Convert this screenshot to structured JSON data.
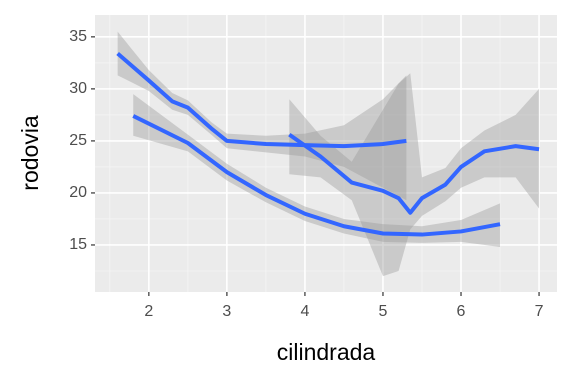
{
  "chart_data": {
    "type": "line",
    "x_label": "cilindrada",
    "y_label": "rodovia",
    "xlim": [
      1.31,
      7.23
    ],
    "ylim": [
      10.48,
      37.1
    ],
    "xticks": [
      2,
      3,
      4,
      5,
      6,
      7
    ],
    "yticks": [
      15,
      20,
      25,
      30,
      35
    ],
    "grid": true,
    "band_color": "#999999",
    "series": [
      {
        "color": "#3366ff",
        "x": [
          1.6,
          2.0,
          2.3,
          2.5,
          2.8,
          3.0,
          3.5,
          4.0,
          4.5,
          5.0,
          5.3
        ],
        "values": [
          33.4,
          30.8,
          28.8,
          28.2,
          26.2,
          25.0,
          24.7,
          24.6,
          24.5,
          24.7,
          25.0
        ],
        "lower": [
          31.3,
          29.8,
          28.0,
          27.5,
          25.6,
          24.3,
          23.9,
          23.5,
          22.5,
          20.5,
          19.3
        ],
        "upper": [
          35.5,
          31.8,
          29.6,
          28.9,
          26.8,
          25.7,
          25.5,
          25.7,
          26.5,
          29.0,
          31.3
        ]
      },
      {
        "color": "#3366ff",
        "x": [
          1.8,
          2.5,
          3.0,
          3.5,
          4.0,
          4.5,
          5.0,
          5.5,
          6.0,
          6.5
        ],
        "values": [
          27.4,
          24.8,
          22.0,
          19.8,
          18.0,
          16.8,
          16.1,
          16.0,
          16.3,
          17.0
        ],
        "lower": [
          25.5,
          24.0,
          21.2,
          19.1,
          17.3,
          16.1,
          15.3,
          15.2,
          15.3,
          14.8
        ],
        "upper": [
          29.5,
          25.6,
          22.8,
          20.5,
          18.7,
          17.5,
          17.0,
          16.8,
          17.4,
          19.0
        ]
      },
      {
        "color": "#3366ff",
        "x": [
          3.8,
          4.2,
          4.6,
          5.0,
          5.2,
          5.35,
          5.5,
          5.8,
          6.0,
          6.3,
          6.7,
          7.0
        ],
        "values": [
          25.6,
          23.5,
          21.0,
          20.2,
          19.5,
          18.1,
          19.5,
          20.8,
          22.5,
          24.0,
          24.5,
          24.2
        ],
        "lower": [
          21.8,
          21.5,
          19.3,
          12.0,
          12.5,
          16.5,
          17.8,
          19.2,
          20.5,
          21.5,
          21.5,
          18.5
        ],
        "upper": [
          29.0,
          25.5,
          23.0,
          28.0,
          30.5,
          31.5,
          21.5,
          22.4,
          24.3,
          26.0,
          27.5,
          30.0
        ]
      }
    ]
  }
}
